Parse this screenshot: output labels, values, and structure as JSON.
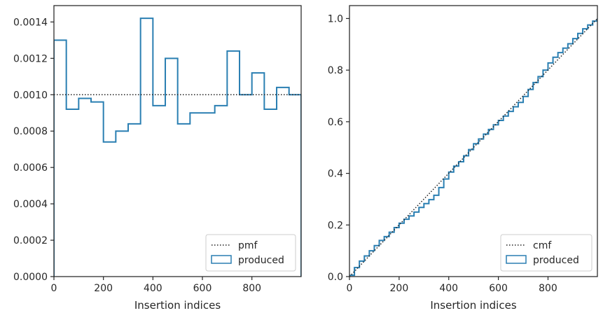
{
  "colors": {
    "produced": "#2a7fb2",
    "reference": "#222222",
    "axes": "#262626",
    "legend_border": "#cccccc"
  },
  "chart_data": [
    {
      "type": "histogram-step",
      "xlabel": "Insertion indices",
      "ylabel": "",
      "xlim": [
        0,
        999
      ],
      "ylim": [
        0,
        0.00149
      ],
      "xticks": [
        0,
        200,
        400,
        600,
        800
      ],
      "xtick_labels": [
        "0",
        "200",
        "400",
        "600",
        "800"
      ],
      "yticks": [
        0,
        0.0002,
        0.0004,
        0.0006,
        0.0008,
        0.001,
        0.0012,
        0.0014
      ],
      "ytick_labels": [
        "0.0000",
        "0.0002",
        "0.0004",
        "0.0006",
        "0.0008",
        "0.0010",
        "0.0012",
        "0.0014"
      ],
      "grid": false,
      "legend_position": "lower-right",
      "legend": [
        "pmf",
        "produced"
      ],
      "series": [
        {
          "name": "produced",
          "style": "step",
          "bin_edges": [
            0,
            50,
            100,
            150,
            200,
            250,
            300,
            350,
            400,
            450,
            500,
            550,
            600,
            650,
            700,
            750,
            800,
            850,
            900,
            950,
            999
          ],
          "values": [
            0.0013,
            0.00092,
            0.00098,
            0.00096,
            0.00074,
            0.0008,
            0.00084,
            0.00142,
            0.00094,
            0.0012,
            0.00084,
            0.0009,
            0.0009,
            0.00094,
            0.00124,
            0.001,
            0.00112,
            0.00092,
            0.00104,
            0.001
          ]
        },
        {
          "name": "pmf",
          "style": "dotted",
          "x": [
            0,
            999
          ],
          "y": [
            0.001,
            0.001
          ]
        }
      ]
    },
    {
      "type": "line",
      "xlabel": "Insertion indices",
      "ylabel": "",
      "xlim": [
        0,
        999
      ],
      "ylim": [
        0,
        1.05
      ],
      "xticks": [
        0,
        200,
        400,
        600,
        800
      ],
      "xtick_labels": [
        "0",
        "200",
        "400",
        "600",
        "800"
      ],
      "yticks": [
        0,
        0.2,
        0.4,
        0.6,
        0.8,
        1.0
      ],
      "ytick_labels": [
        "0.0",
        "0.2",
        "0.4",
        "0.6",
        "0.8",
        "1.0"
      ],
      "grid": false,
      "legend_position": "lower-right",
      "legend": [
        "cmf",
        "produced"
      ],
      "series": [
        {
          "name": "produced",
          "style": "step",
          "x": [
            0,
            20,
            40,
            60,
            80,
            100,
            120,
            140,
            160,
            180,
            200,
            220,
            240,
            260,
            280,
            300,
            320,
            340,
            360,
            380,
            400,
            420,
            440,
            460,
            480,
            500,
            520,
            540,
            560,
            580,
            600,
            620,
            640,
            660,
            680,
            700,
            720,
            740,
            760,
            780,
            800,
            820,
            840,
            860,
            880,
            900,
            920,
            940,
            960,
            980,
            999
          ],
          "values": [
            0.005,
            0.035,
            0.06,
            0.08,
            0.1,
            0.12,
            0.14,
            0.155,
            0.172,
            0.19,
            0.207,
            0.222,
            0.235,
            0.25,
            0.268,
            0.283,
            0.298,
            0.315,
            0.345,
            0.378,
            0.405,
            0.428,
            0.445,
            0.468,
            0.492,
            0.515,
            0.533,
            0.552,
            0.57,
            0.588,
            0.605,
            0.622,
            0.64,
            0.658,
            0.675,
            0.698,
            0.725,
            0.752,
            0.775,
            0.8,
            0.828,
            0.85,
            0.868,
            0.885,
            0.902,
            0.922,
            0.942,
            0.96,
            0.975,
            0.99,
            1.0
          ]
        },
        {
          "name": "cmf",
          "style": "dotted",
          "x": [
            0,
            999
          ],
          "y": [
            0,
            1.0
          ]
        }
      ]
    }
  ]
}
